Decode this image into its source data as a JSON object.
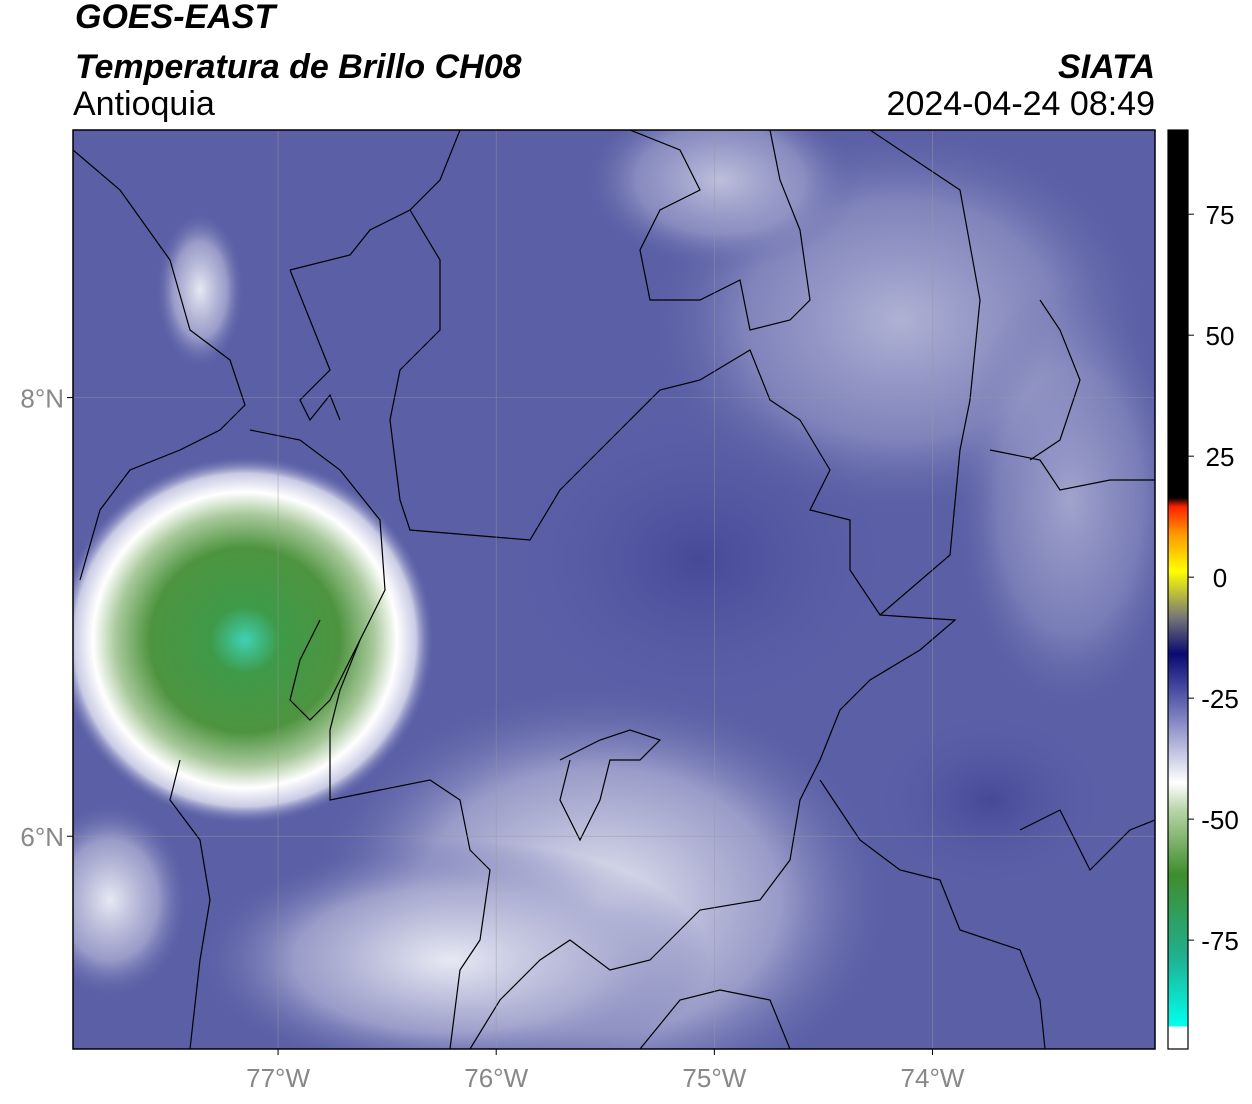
{
  "header": {
    "line1": "GOES-EAST",
    "line2": "Temperatura de Brillo CH08",
    "org": "SIATA",
    "region": "Antioquia",
    "datetime": "2024-04-24 08:49"
  },
  "map": {
    "xlim": [
      -77.94,
      -72.98
    ],
    "ylim": [
      5.03,
      9.22
    ],
    "xticks": [
      {
        "value": -77,
        "label": "77°W"
      },
      {
        "value": -76,
        "label": "76°W"
      },
      {
        "value": -75,
        "label": "75°W"
      },
      {
        "value": -74,
        "label": "74°W"
      }
    ],
    "yticks": [
      {
        "value": 8,
        "label": "8°N"
      },
      {
        "value": 6,
        "label": "6°N"
      }
    ],
    "grid": true
  },
  "colorbar": {
    "lim": [
      -97.5,
      92.4
    ],
    "ticks": [
      75,
      50,
      25,
      0,
      -25,
      -50,
      -75
    ]
  }
}
